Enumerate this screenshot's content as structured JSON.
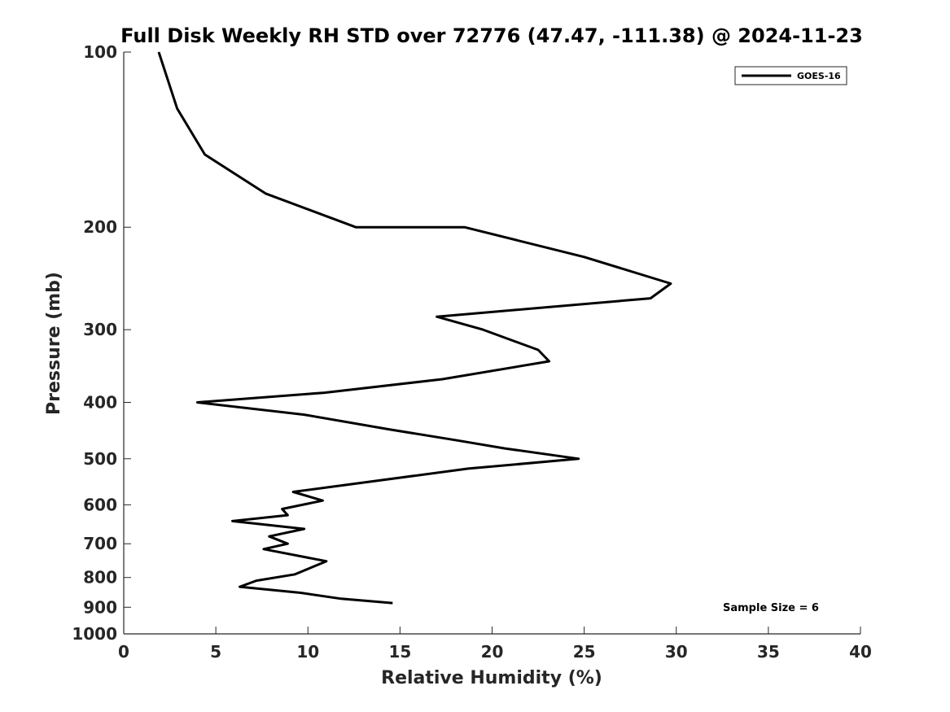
{
  "chart_data": {
    "type": "line",
    "title": "Full Disk Weekly RH STD over 72776 (47.47, -111.38) @ 2024-11-23",
    "xlabel": "Relative Humidity (%)",
    "ylabel": "Pressure (mb)",
    "xlim": [
      0,
      40
    ],
    "ylim": [
      100,
      1000
    ],
    "yscale": "log",
    "yaxis_direction": "reversed",
    "xticks": [
      0,
      5,
      10,
      15,
      20,
      25,
      30,
      35,
      40
    ],
    "xtick_labels": [
      "0",
      "5",
      "10",
      "15",
      "20",
      "25",
      "30",
      "35",
      "40"
    ],
    "yticks": [
      100,
      200,
      300,
      400,
      500,
      600,
      700,
      800,
      900,
      1000
    ],
    "ytick_labels": [
      "100",
      "200",
      "300",
      "400",
      "500",
      "600",
      "700",
      "800",
      "900",
      "1000"
    ],
    "grid": false,
    "legend_position": "top-right",
    "annotation": "Sample Size = 6",
    "series": [
      {
        "name": "GOES-16",
        "color": "#000000",
        "points": [
          {
            "x": 1.9,
            "y": 100
          },
          {
            "x": 2.9,
            "y": 125
          },
          {
            "x": 4.4,
            "y": 150
          },
          {
            "x": 7.7,
            "y": 175
          },
          {
            "x": 12.6,
            "y": 200
          },
          {
            "x": 18.5,
            "y": 200
          },
          {
            "x": 25.0,
            "y": 225
          },
          {
            "x": 29.7,
            "y": 250
          },
          {
            "x": 28.6,
            "y": 265
          },
          {
            "x": 17.0,
            "y": 285
          },
          {
            "x": 19.5,
            "y": 300
          },
          {
            "x": 22.5,
            "y": 325
          },
          {
            "x": 23.1,
            "y": 340
          },
          {
            "x": 17.3,
            "y": 365
          },
          {
            "x": 10.9,
            "y": 385
          },
          {
            "x": 4.0,
            "y": 400
          },
          {
            "x": 9.8,
            "y": 420
          },
          {
            "x": 14.4,
            "y": 445
          },
          {
            "x": 18.1,
            "y": 465
          },
          {
            "x": 20.7,
            "y": 480
          },
          {
            "x": 24.7,
            "y": 500
          },
          {
            "x": 18.7,
            "y": 520
          },
          {
            "x": 9.2,
            "y": 570
          },
          {
            "x": 10.8,
            "y": 590
          },
          {
            "x": 8.6,
            "y": 610
          },
          {
            "x": 8.9,
            "y": 625
          },
          {
            "x": 5.9,
            "y": 640
          },
          {
            "x": 9.8,
            "y": 660
          },
          {
            "x": 7.9,
            "y": 680
          },
          {
            "x": 8.9,
            "y": 700
          },
          {
            "x": 7.6,
            "y": 715
          },
          {
            "x": 11.0,
            "y": 750
          },
          {
            "x": 9.3,
            "y": 790
          },
          {
            "x": 7.2,
            "y": 810
          },
          {
            "x": 6.3,
            "y": 830
          },
          {
            "x": 9.6,
            "y": 850
          },
          {
            "x": 11.8,
            "y": 870
          },
          {
            "x": 14.6,
            "y": 885
          }
        ]
      }
    ]
  }
}
